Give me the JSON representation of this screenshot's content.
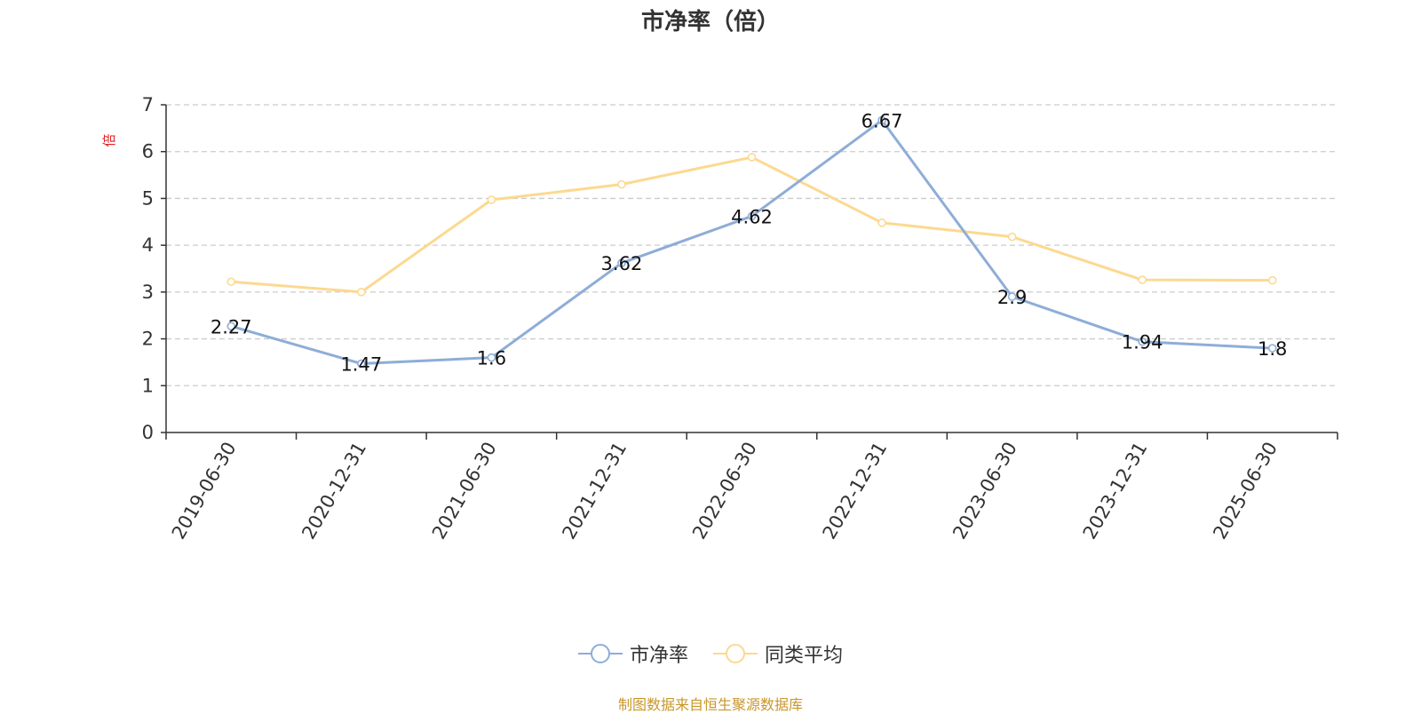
{
  "chart_data": {
    "type": "line",
    "title": "市净率（倍）",
    "ylabel": "倍",
    "xlabel": "",
    "categories": [
      "2019-06-30",
      "2020-12-31",
      "2021-06-30",
      "2021-12-31",
      "2022-06-30",
      "2022-12-31",
      "2023-06-30",
      "2023-12-31",
      "2025-06-30"
    ],
    "ylim": [
      0,
      7
    ],
    "yticks": [
      "0",
      "1",
      "2",
      "3",
      "4",
      "5",
      "6",
      "7"
    ],
    "grid": true,
    "legend_position": "bottom",
    "series": [
      {
        "name": "市净率",
        "color": "#8eadd8",
        "show_labels": true,
        "values": [
          2.27,
          1.47,
          1.6,
          3.62,
          4.62,
          6.67,
          2.9,
          1.94,
          1.8
        ]
      },
      {
        "name": "同类平均",
        "color": "#fcd991",
        "show_labels": false,
        "values": [
          3.22,
          3.0,
          4.97,
          5.3,
          5.88,
          4.48,
          4.18,
          3.26,
          3.25
        ]
      }
    ]
  },
  "footer": "制图数据来自恒生聚源数据库",
  "colors": {
    "axis": "#333333",
    "grid": "#cccccc",
    "ylabel": "#e02020",
    "footer": "#c8972a"
  }
}
